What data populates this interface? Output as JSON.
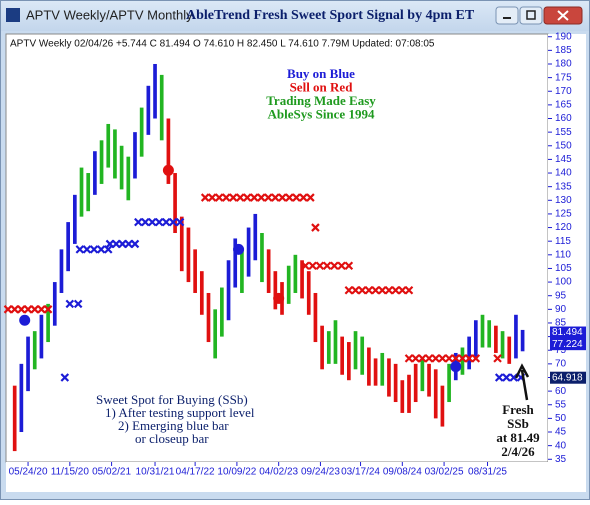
{
  "window": {
    "title": "APTV  Weekly/APTV  Monthly",
    "heading": "AbleTrend Fresh Sweet Sport Signal by 4pm ET"
  },
  "chart_data": {
    "type": "hilo",
    "info": "APTV  Weekly 02/04/26 +5.744 C 81.494 O 74.610 H 82.450 L 74.610 7.79M Updated: 07:08:05",
    "legend_lines": [
      {
        "text": "Buy on Blue",
        "color": "#1c1cd6"
      },
      {
        "text": "Sell on Red",
        "color": "#e01010"
      },
      {
        "text": "Trading Made Easy",
        "color": "#1f9a1f"
      },
      {
        "text": "AbleSys Since 1994",
        "color": "#1f9a1f"
      }
    ],
    "note_left": [
      "Sweet Spot for Buying (SSb)",
      "1) After testing support level",
      "2) Emerging blue bar",
      "or closeup bar"
    ],
    "note_right": [
      "Fresh",
      "SSb",
      "at 81.49",
      "2/4/26"
    ],
    "xlim": [
      -12,
      310
    ],
    "xticks": [
      {
        "value": 0,
        "label": "05/24/20"
      },
      {
        "value": 25,
        "label": "11/15/20"
      },
      {
        "value": 50,
        "label": "05/02/21"
      },
      {
        "value": 76,
        "label": "10/31/21"
      },
      {
        "value": 100,
        "label": "04/17/22"
      },
      {
        "value": 125,
        "label": "10/09/22"
      },
      {
        "value": 150,
        "label": "04/02/23"
      },
      {
        "value": 175,
        "label": "09/24/23"
      },
      {
        "value": 199,
        "label": "03/17/24"
      },
      {
        "value": 224,
        "label": "09/08/24"
      },
      {
        "value": 249,
        "label": "03/02/25"
      },
      {
        "value": 275,
        "label": "08/31/25"
      }
    ],
    "ylim": [
      34,
      191
    ],
    "yticks": [
      35,
      40,
      45,
      50,
      55,
      60,
      65,
      70,
      75,
      80,
      85,
      90,
      95,
      100,
      105,
      110,
      115,
      120,
      125,
      130,
      135,
      140,
      145,
      150,
      155,
      160,
      165,
      170,
      175,
      180,
      185,
      190
    ],
    "price_labels": [
      {
        "value": 81.494,
        "color": "#1c1cd6"
      },
      {
        "value": 77.224,
        "color": "#1c1cd6"
      },
      {
        "value": 64.918,
        "color": "#0b1f6b"
      }
    ],
    "bars": {
      "x": [
        -8,
        -4,
        0,
        4,
        8,
        12,
        16,
        20,
        24,
        28,
        32,
        36,
        40,
        44,
        48,
        52,
        56,
        60,
        64,
        68,
        72,
        76,
        80,
        84,
        88,
        92,
        96,
        100,
        104,
        108,
        112,
        116,
        120,
        124,
        128,
        132,
        136,
        140,
        144,
        148,
        152,
        156,
        160,
        164,
        168,
        172,
        176,
        180,
        184,
        188,
        192,
        196,
        200,
        204,
        208,
        212,
        216,
        220,
        224,
        228,
        232,
        236,
        240,
        244,
        248,
        252,
        256,
        260,
        264,
        268,
        272,
        276,
        280,
        284,
        288,
        292,
        296
      ],
      "high": [
        62,
        70,
        80,
        82,
        88,
        92,
        100,
        112,
        122,
        132,
        142,
        140,
        148,
        152,
        158,
        156,
        150,
        146,
        155,
        164,
        172,
        180,
        176,
        160,
        140,
        124,
        120,
        112,
        104,
        96,
        90,
        98,
        108,
        116,
        112,
        120,
        125,
        118,
        112,
        104,
        100,
        106,
        110,
        108,
        104,
        96,
        84,
        82,
        86,
        80,
        78,
        82,
        80,
        76,
        72,
        74,
        72,
        70,
        64,
        66,
        70,
        72,
        70,
        68,
        62,
        70,
        74,
        76,
        80,
        86,
        88,
        86,
        84,
        82,
        80,
        88,
        82.45
      ],
      "low": [
        38,
        45,
        60,
        68,
        72,
        78,
        84,
        96,
        104,
        114,
        124,
        126,
        132,
        136,
        142,
        138,
        134,
        130,
        138,
        146,
        154,
        160,
        152,
        136,
        118,
        104,
        100,
        96,
        88,
        78,
        72,
        80,
        86,
        98,
        96,
        102,
        108,
        100,
        96,
        90,
        88,
        92,
        96,
        94,
        88,
        78,
        68,
        70,
        70,
        66,
        64,
        68,
        66,
        62,
        62,
        62,
        58,
        56,
        52,
        52,
        56,
        60,
        58,
        50,
        47,
        56,
        64,
        66,
        68,
        72,
        76,
        76,
        74,
        72,
        70,
        72,
        74.61
      ],
      "colors": [
        "#e01010",
        "#1c1cd6",
        "#1c1cd6",
        "#22b522",
        "#1c1cd6",
        "#22b522",
        "#1c1cd6",
        "#1c1cd6",
        "#1c1cd6",
        "#1c1cd6",
        "#22b522",
        "#22b522",
        "#1c1cd6",
        "#22b522",
        "#22b522",
        "#22b522",
        "#22b522",
        "#22b522",
        "#1c1cd6",
        "#22b522",
        "#1c1cd6",
        "#1c1cd6",
        "#22b522",
        "#e01010",
        "#e01010",
        "#e01010",
        "#e01010",
        "#e01010",
        "#e01010",
        "#e01010",
        "#22b522",
        "#22b522",
        "#1c1cd6",
        "#1c1cd6",
        "#22b522",
        "#1c1cd6",
        "#1c1cd6",
        "#22b522",
        "#e01010",
        "#e01010",
        "#e01010",
        "#22b522",
        "#22b522",
        "#e01010",
        "#e01010",
        "#e01010",
        "#e01010",
        "#22b522",
        "#22b522",
        "#e01010",
        "#e01010",
        "#22b522",
        "#22b522",
        "#e01010",
        "#e01010",
        "#22b522",
        "#e01010",
        "#e01010",
        "#e01010",
        "#e01010",
        "#e01010",
        "#22b522",
        "#e01010",
        "#e01010",
        "#e01010",
        "#22b522",
        "#1c1cd6",
        "#22b522",
        "#1c1cd6",
        "#1c1cd6",
        "#22b522",
        "#22b522",
        "#e01010",
        "#22b522",
        "#e01010",
        "#1c1cd6",
        "#1c1cd6"
      ]
    },
    "stops": [
      {
        "x": [
          -12,
          12
        ],
        "value": 90,
        "color": "#e01010"
      },
      {
        "x": [
          22,
          22
        ],
        "value": 65,
        "color": "#1c1cd6"
      },
      {
        "x": [
          25,
          30
        ],
        "value": 92,
        "color": "#1c1cd6"
      },
      {
        "x": [
          31,
          48
        ],
        "value": 112,
        "color": "#1c1cd6"
      },
      {
        "x": [
          49,
          64
        ],
        "value": 114,
        "color": "#1c1cd6"
      },
      {
        "x": [
          66,
          91
        ],
        "value": 122,
        "color": "#1c1cd6"
      },
      {
        "x": [
          106,
          169
        ],
        "value": 131,
        "color": "#e01010"
      },
      {
        "x": [
          172,
          172
        ],
        "value": 120,
        "color": "#e01010"
      },
      {
        "x": [
          166,
          192
        ],
        "value": 106,
        "color": "#e01010"
      },
      {
        "x": [
          192,
          228
        ],
        "value": 97,
        "color": "#e01010"
      },
      {
        "x": [
          228,
          268
        ],
        "value": 72,
        "color": "#e01010"
      },
      {
        "x": [
          281,
          281
        ],
        "value": 72,
        "color": "#e01010"
      },
      {
        "x": [
          282,
          295
        ],
        "value": 65,
        "color": "#1c1cd6"
      }
    ],
    "signals": [
      {
        "x": -2,
        "value": 86,
        "color": "#1c1cd6"
      },
      {
        "x": 84,
        "value": 141,
        "color": "#e01010"
      },
      {
        "x": 126,
        "value": 112,
        "color": "#1c1cd6"
      },
      {
        "x": 150,
        "value": 94,
        "color": "#e01010"
      },
      {
        "x": 256,
        "value": 69,
        "color": "#1c1cd6"
      }
    ]
  }
}
